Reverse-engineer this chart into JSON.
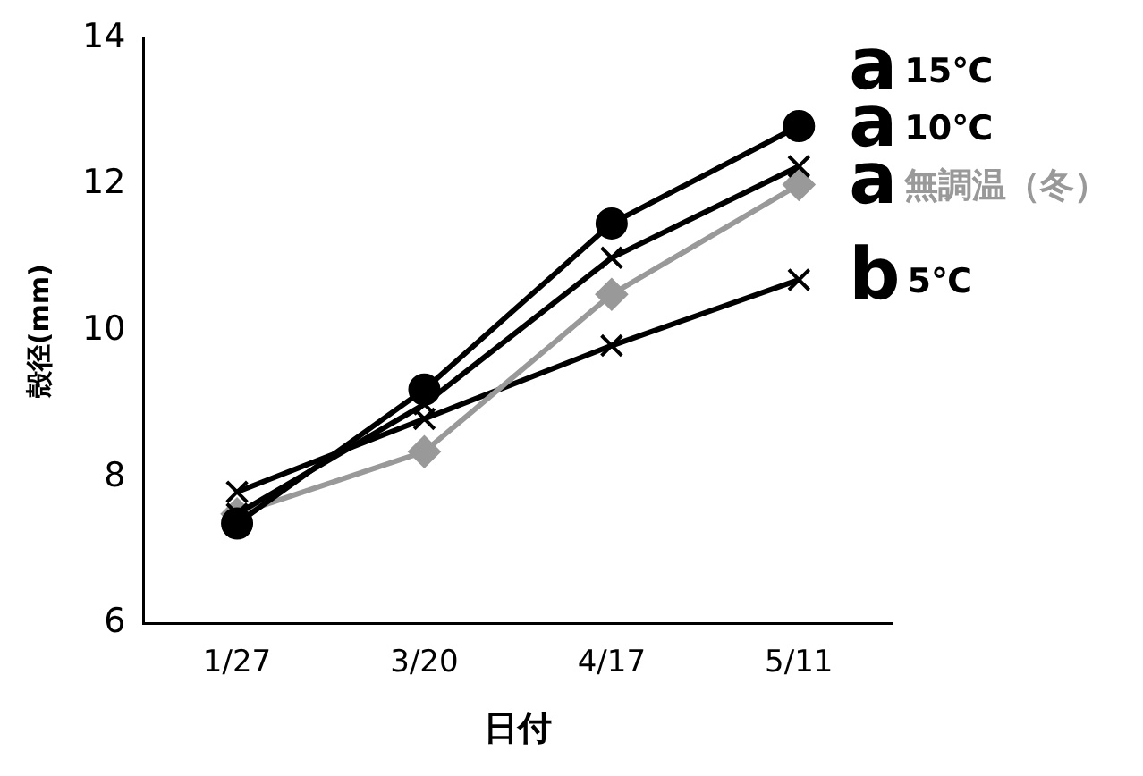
{
  "chart_data": {
    "type": "line",
    "xlabel": "日付",
    "ylabel": "殻径(mm)",
    "categories": [
      "1/27",
      "3/20",
      "4/17",
      "5/11"
    ],
    "ylim": [
      6,
      14
    ],
    "yticks": [
      6,
      8,
      10,
      12,
      14
    ],
    "grid": false,
    "legend": false,
    "line_style": "solid",
    "series": [
      {
        "name": "15℃",
        "color": "#000000",
        "marker": "circle",
        "values": [
          7.37,
          9.2,
          11.47,
          12.8
        ]
      },
      {
        "name": "10℃",
        "color": "#000000",
        "marker": "cross",
        "values": [
          7.5,
          9.0,
          11.0,
          12.25
        ]
      },
      {
        "name": "無調温（冬）",
        "color": "#999999",
        "marker": "diamond",
        "values": [
          7.5,
          8.35,
          10.5,
          12.0
        ]
      },
      {
        "name": "5℃",
        "color": "#000000",
        "marker": "cross",
        "values": [
          7.8,
          8.8,
          9.8,
          10.7
        ]
      }
    ],
    "annotations": [
      "a",
      "a",
      "a",
      "b"
    ]
  }
}
